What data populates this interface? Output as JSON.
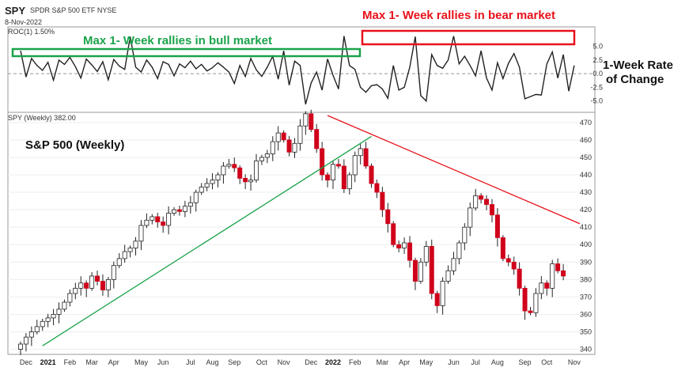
{
  "header": {
    "symbol": "SPY",
    "name": "SPDR S&P 500 ETF NYSE",
    "date": "8-Nov-2022"
  },
  "roc_panel": {
    "label": "ROC(1) 1.50%",
    "ticks": [
      "5.0",
      "2.5",
      "0.0",
      "-2.5",
      "-5.0"
    ],
    "tick_values": [
      5.0,
      2.5,
      0.0,
      -2.5,
      -5.0
    ],
    "ylim": [
      -6.5,
      8.0
    ],
    "line_color": "#222222"
  },
  "price_panel": {
    "label": "SPY (Weekly) 382.00",
    "ticks": [
      "470",
      "460",
      "450",
      "440",
      "430",
      "420",
      "410",
      "400",
      "390",
      "380",
      "370",
      "360",
      "350",
      "340"
    ],
    "tick_values": [
      470,
      460,
      450,
      440,
      430,
      420,
      410,
      400,
      390,
      380,
      370,
      360,
      350,
      340
    ],
    "ylim": [
      338,
      474
    ],
    "up_color": "#ffffff",
    "down_color": "#d0021b"
  },
  "annotations": {
    "bull": "Max 1- Week rallies in bull market",
    "bear": "Max 1- Week rallies in bear market",
    "side_line1": "1-Week Rate",
    "side_line2": "of Change",
    "main_title": "S&P 500 (Weekly)",
    "bull_color": "#1aa34a",
    "bear_color": "#e8111a"
  },
  "x_axis": {
    "labels": [
      "Dec",
      "2021",
      "Feb",
      "Mar",
      "Apr",
      "May",
      "Jun",
      "Jul",
      "Aug",
      "Sep",
      "Oct",
      "Nov",
      "Dec",
      "2022",
      "Feb",
      "Mar",
      "Apr",
      "May",
      "Jun",
      "Jul",
      "Aug",
      "Sep",
      "Oct",
      "Nov"
    ],
    "bold": [
      "2021",
      "2022"
    ],
    "label_weeks": [
      1,
      5,
      9,
      13,
      17,
      22,
      26,
      31,
      35,
      39,
      44,
      48,
      53,
      57,
      61,
      66,
      70,
      74,
      79,
      83,
      87,
      92,
      96,
      101
    ]
  },
  "chart_data": [
    {
      "type": "candlestick",
      "title": "S&P 500 (Weekly)",
      "series_name": "SPY (Weekly)",
      "last": 382.0,
      "x_start": "Nov 2020",
      "x_end": "8-Nov-2022",
      "ylim": [
        338,
        474
      ],
      "closes": [
        343,
        347,
        350,
        353,
        356,
        358,
        360,
        363,
        367,
        372,
        375,
        378,
        375,
        382,
        379,
        374,
        380,
        388,
        392,
        396,
        398,
        402,
        411,
        414,
        416,
        413,
        411,
        418,
        420,
        419,
        422,
        424,
        430,
        433,
        435,
        437,
        440,
        445,
        446,
        444,
        438,
        436,
        437,
        448,
        450,
        452,
        459,
        464,
        460,
        453,
        458,
        468,
        475,
        466,
        455,
        440,
        437,
        446,
        445,
        432,
        440,
        451,
        455,
        445,
        435,
        430,
        420,
        412,
        400,
        398,
        401,
        391,
        379,
        390,
        399,
        372,
        365,
        379,
        385,
        392,
        401,
        410,
        421,
        428,
        426,
        423,
        417,
        404,
        392,
        390,
        386,
        375,
        362,
        361,
        372,
        378,
        375,
        389,
        385,
        382
      ],
      "trendlines": [
        {
          "color": "#1aa34a",
          "from": {
            "week": 4,
            "price": 342
          },
          "to": {
            "week": 64,
            "price": 462
          }
        },
        {
          "color": "#e8111a",
          "from": {
            "week": 56,
            "price": 474
          },
          "to": {
            "week": 102,
            "price": 412
          }
        }
      ]
    },
    {
      "type": "line",
      "title": "ROC(1) 1.50%",
      "ylabel": "1-Week Rate of Change",
      "ylim": [
        -6.5,
        8.0
      ],
      "values": [
        4.2,
        -0.6,
        2.8,
        1.5,
        0.6,
        2.1,
        -1.2,
        2.5,
        1.7,
        3.0,
        1.3,
        -0.8,
        2.7,
        1.6,
        0.4,
        2.2,
        -1.1,
        2.6,
        1.4,
        0.8,
        6.8,
        1.2,
        0.3,
        2.5,
        1.2,
        -0.9,
        2.2,
        1.7,
        -0.4,
        1.8,
        1.1,
        2.3,
        0.9,
        1.7,
        0.5,
        1.1,
        2.0,
        1.2,
        0.3,
        -1.8,
        1.5,
        -0.5,
        2.8,
        0.7,
        -0.5,
        1.2,
        3.2,
        -1.0,
        4.2,
        -2.1,
        2.3,
        1.5,
        -5.6,
        -1.7,
        0.3,
        -3.0,
        2.7,
        -0.3,
        -2.8,
        6.9,
        1.5,
        0.8,
        -2.5,
        -3.4,
        -2.2,
        -2.0,
        -2.8,
        -4.5,
        1.5,
        -3.0,
        -2.5,
        1.2,
        6.8,
        -4.0,
        -5.0,
        3.5,
        1.5,
        1.0,
        2.5,
        6.9,
        1.8,
        3.2,
        1.5,
        -0.4,
        4.2,
        -0.8,
        -3.0,
        2.0,
        -0.9,
        1.9,
        3.7,
        1.2,
        -4.6,
        -4.2,
        -3.8,
        -3.9,
        1.8,
        4.0,
        -0.8,
        3.5,
        -3.2,
        1.5
      ]
    }
  ]
}
